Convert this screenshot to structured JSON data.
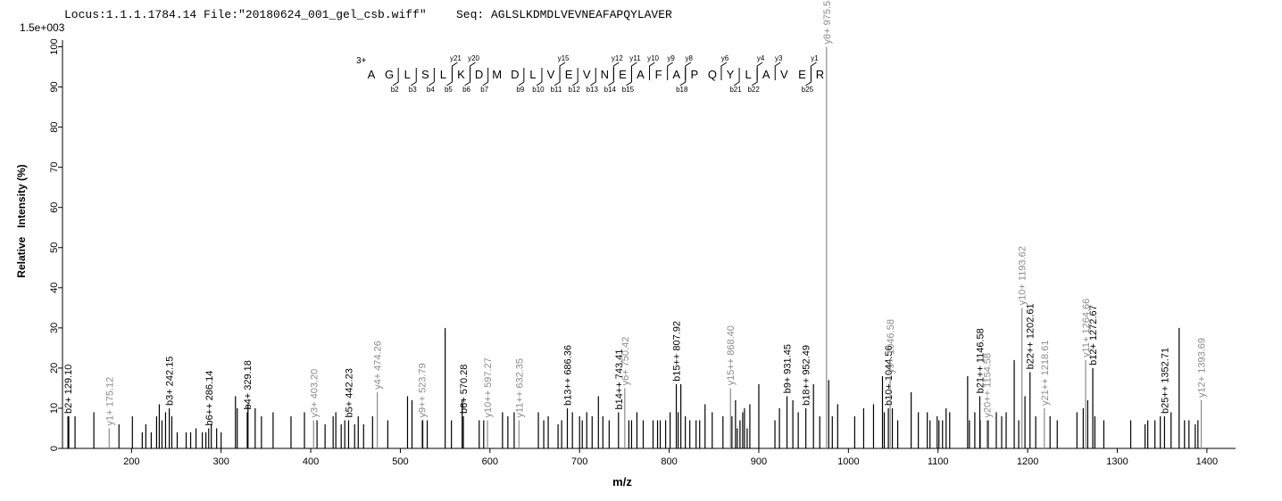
{
  "header": {
    "locus": "Locus:1.1.1.1784.14 File:\"20180624_001_gel_csb.wiff\"",
    "seq": "Seq: AGLSLKDMDLVEVNEAFAPQYLAVER"
  },
  "peptide": {
    "charge": "3+",
    "sequence": [
      "A",
      "G",
      "L",
      "S",
      "L",
      "K",
      "D",
      "M",
      "D",
      "L",
      "V",
      "E",
      "V",
      "N",
      "E",
      "A",
      "F",
      "A",
      "P",
      "Q",
      "Y",
      "L",
      "A",
      "V",
      "E",
      "R"
    ],
    "b_ions": [
      "b2",
      "b3",
      "b4",
      "b5",
      "b6",
      "b7",
      "b9",
      "b10",
      "b11",
      "b12",
      "b13",
      "b14",
      "b15",
      "b18",
      "b21",
      "b22",
      "b25"
    ],
    "y_ions": [
      "y21",
      "y20",
      "y15",
      "y12",
      "y11",
      "y10",
      "y9",
      "y8",
      "y6",
      "y4",
      "y3",
      "y1"
    ]
  },
  "chart_data": {
    "type": "stem",
    "scale_label": "1.5e+003",
    "xlabel": "m/z",
    "ylabel": "Relative   Intensity (%)",
    "xlim": [
      123,
      1432
    ],
    "ylim": [
      0,
      101
    ],
    "xticks": [
      200,
      300,
      400,
      500,
      600,
      700,
      800,
      900,
      1000,
      1100,
      1200,
      1300,
      1400
    ],
    "yticks": [
      0,
      10,
      20,
      30,
      40,
      50,
      60,
      70,
      80,
      90,
      100
    ],
    "series": [
      {
        "color": "#000000",
        "x": [
          129.1,
          242.15,
          286.14,
          329.18,
          442.23,
          570.28,
          686.36,
          743.41,
          807.92,
          931.45,
          952.49,
          1044.56,
          1146.58,
          1202.61,
          1272.67,
          1352.71
        ],
        "values": [
          8,
          10,
          5,
          9,
          7,
          8,
          10,
          9,
          16,
          13,
          10,
          10,
          13,
          19,
          20,
          8
        ],
        "labels": [
          "b2+ 129.10",
          "b3+ 242.15",
          "b6++ 286.14",
          "b4+ 329.18",
          "b5+ 442.23",
          "b6+ 570.28",
          "b13++ 686.36",
          "b14++ 743.41",
          "b15++ 807.92",
          "b9+ 931.45",
          "b18++ 952.49",
          "b10+ 1044.56",
          "b21++ 1146.58",
          "b22++ 1202.61",
          "b12+ 1272.67",
          "b25++ 1352.71"
        ]
      },
      {
        "color": "#8c8c8c",
        "x": [
          175.12,
          403.2,
          474.26,
          523.79,
          597.27,
          632.35,
          750.42,
          868.4,
          975.53,
          1046.58,
          1154.58,
          1193.62,
          1218.61,
          1264.66,
          1393.69
        ],
        "values": [
          5,
          7,
          14,
          7,
          7,
          7,
          15,
          15,
          100,
          18,
          7,
          35,
          10,
          22,
          12
        ],
        "labels": [
          "y1+ 175.12",
          "y3+ 403.20",
          "y4+ 474.26",
          "y9++ 523.79",
          "y10++ 597.27",
          "y11++ 632.35",
          "y6+ 750.42",
          "y15++ 868.40",
          "y8+ 975.53",
          "y9+ 1046.58",
          "y20++ 1154.58",
          "y10+ 1193.62",
          "y21++ 1218.61",
          "y11+ 1264.66",
          "y12+ 1393.69"
        ]
      },
      {
        "color": "#000000",
        "x": [
          130,
          137,
          158,
          186,
          201,
          212,
          216,
          222,
          228,
          231,
          234,
          238,
          245,
          251,
          261,
          266,
          272,
          279,
          283,
          289,
          295,
          300,
          316,
          318,
          330,
          338,
          345,
          358,
          378,
          393,
          407,
          416,
          425,
          428,
          434,
          438,
          449,
          453,
          459,
          469,
          486,
          508,
          513,
          525,
          530,
          550,
          557,
          569,
          588,
          593,
          614,
          620,
          627,
          654,
          660,
          665,
          676,
          680,
          692,
          700,
          703,
          708,
          714,
          721,
          726,
          733,
          755,
          758,
          764,
          771,
          782,
          787,
          790,
          796,
          801,
          810,
          813,
          818,
          823,
          830,
          834,
          840,
          848,
          860,
          870,
          874,
          876,
          879,
          882,
          884,
          887,
          890,
          900,
          918,
          923,
          938,
          944,
          961,
          968,
          978,
          982,
          988,
          1007,
          1017,
          1028,
          1038,
          1040,
          1049,
          1055,
          1070,
          1078,
          1088,
          1091,
          1099,
          1101,
          1105,
          1109,
          1113,
          1133,
          1135,
          1141,
          1147,
          1156,
          1165,
          1171,
          1176,
          1185,
          1190,
          1197,
          1209,
          1225,
          1233,
          1255,
          1262,
          1267,
          1275,
          1285,
          1315,
          1331,
          1334,
          1342,
          1348,
          1360,
          1369,
          1375,
          1380,
          1387,
          1390
        ],
        "values": [
          8,
          8,
          9,
          6,
          8,
          4,
          6,
          4,
          8,
          11,
          7,
          9,
          8,
          4,
          4,
          4,
          5,
          4,
          4,
          6,
          5,
          4,
          13,
          10,
          11,
          10,
          8,
          9,
          8,
          9,
          7,
          6,
          8,
          9,
          6,
          7,
          6,
          8,
          6,
          8,
          7,
          13,
          12,
          7,
          7,
          30,
          7,
          12,
          7,
          7,
          9,
          8,
          9,
          9,
          7,
          8,
          6,
          7,
          9,
          8,
          7,
          9,
          8,
          13,
          8,
          7,
          7,
          7,
          9,
          7,
          7,
          7,
          7,
          7,
          9,
          9,
          16,
          8,
          7,
          7,
          7,
          11,
          9,
          8,
          8,
          12,
          5,
          7,
          9,
          10,
          5,
          11,
          16,
          7,
          10,
          12,
          9,
          16,
          8,
          17,
          8,
          11,
          8,
          10,
          11,
          18,
          9,
          10,
          7,
          14,
          9,
          9,
          7,
          8,
          7,
          7,
          10,
          9,
          18,
          7,
          9,
          7,
          7,
          9,
          8,
          9,
          22,
          7,
          13,
          8,
          8,
          7,
          9,
          10,
          12,
          8,
          7,
          7,
          6,
          7,
          7,
          8,
          9,
          30,
          7,
          7,
          6,
          7
        ]
      }
    ]
  }
}
